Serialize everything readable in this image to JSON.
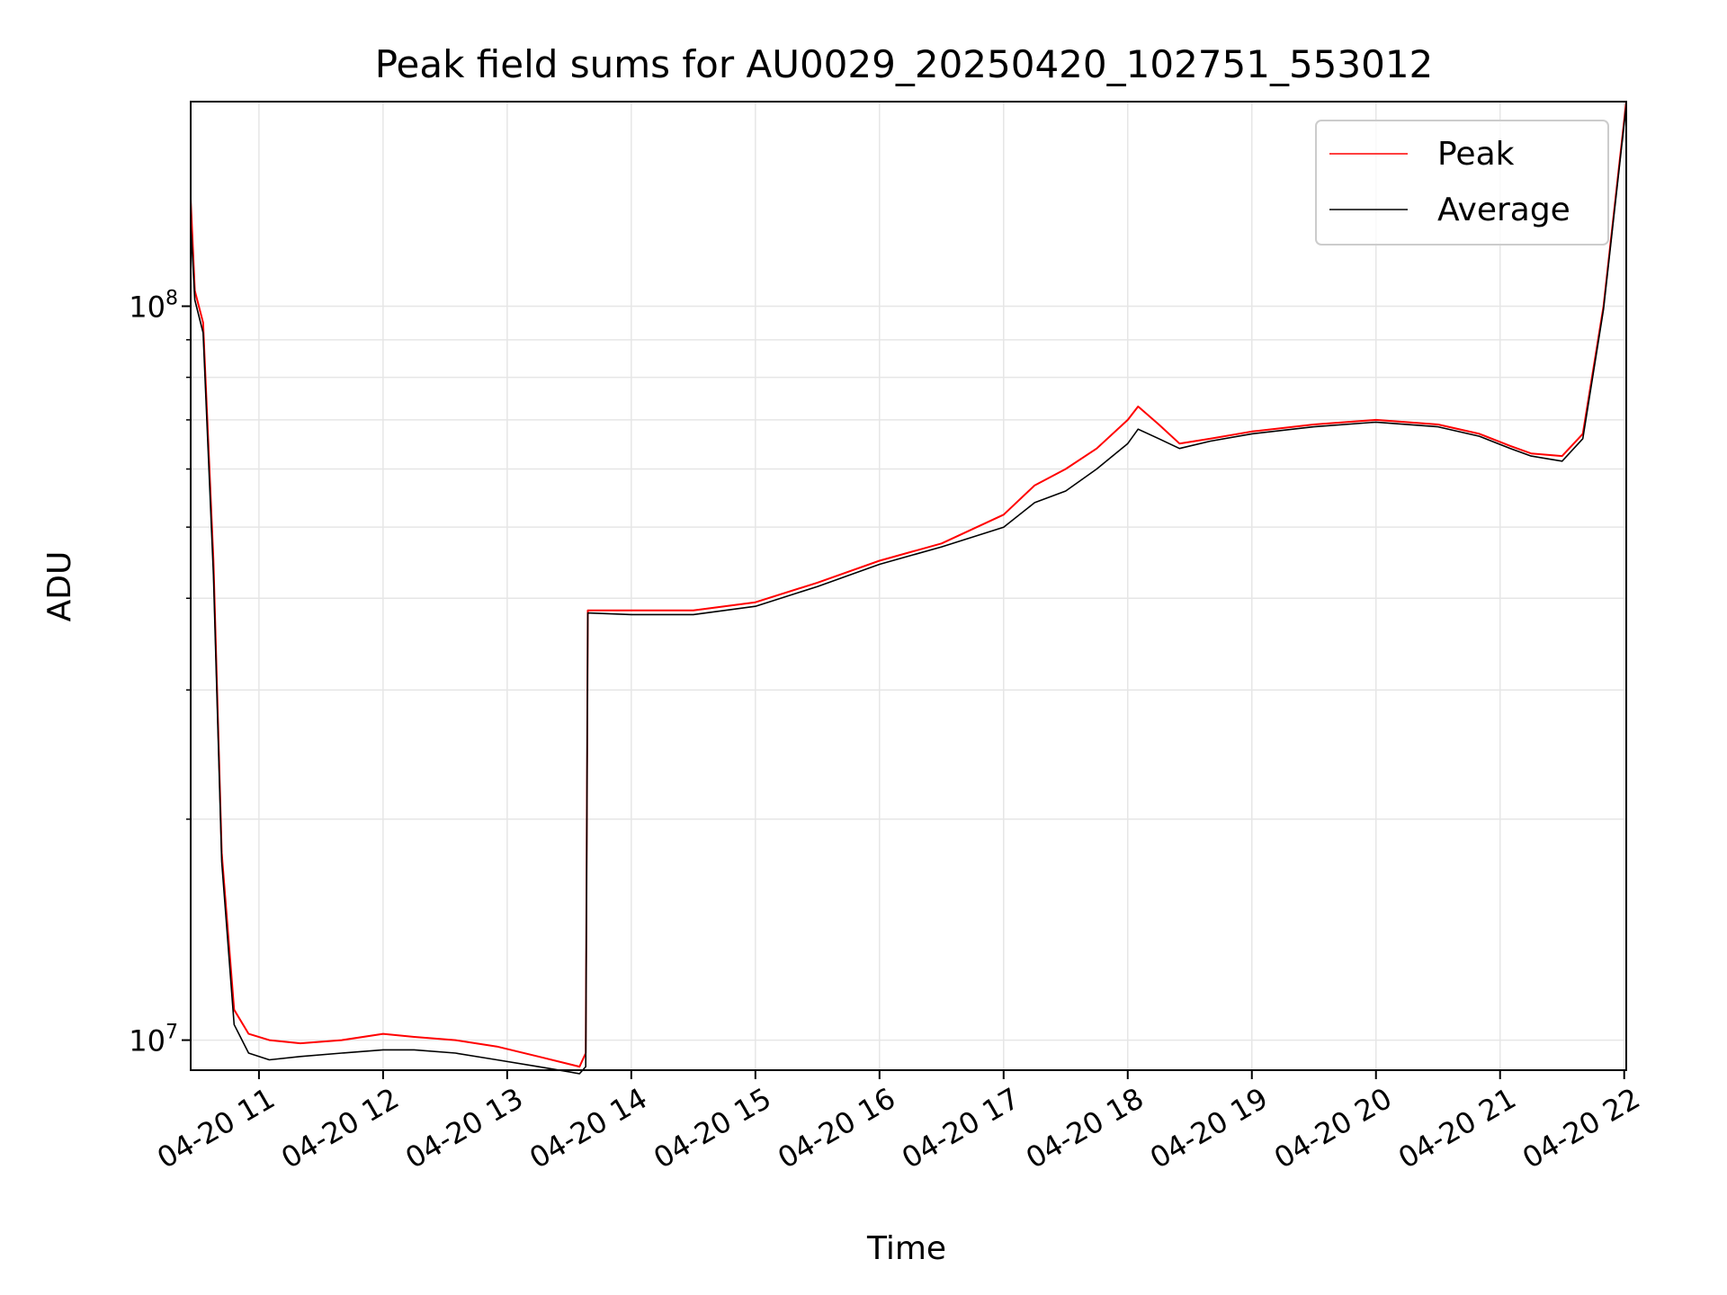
{
  "chart_data": {
    "type": "line",
    "title": "Peak field sums for AU0029_20250420_102751_553012",
    "xlabel": "Time",
    "ylabel": "ADU",
    "yscale": "log",
    "xlim": [
      "2025-04-20T10:27",
      "2025-04-20T22:01"
    ],
    "ylim": [
      9100000.0,
      190000000.0
    ],
    "x_ticks": [
      {
        "label": "04-20 11",
        "t": "2025-04-20T11:00"
      },
      {
        "label": "04-20 12",
        "t": "2025-04-20T12:00"
      },
      {
        "label": "04-20 13",
        "t": "2025-04-20T13:00"
      },
      {
        "label": "04-20 14",
        "t": "2025-04-20T14:00"
      },
      {
        "label": "04-20 15",
        "t": "2025-04-20T15:00"
      },
      {
        "label": "04-20 16",
        "t": "2025-04-20T16:00"
      },
      {
        "label": "04-20 17",
        "t": "2025-04-20T17:00"
      },
      {
        "label": "04-20 18",
        "t": "2025-04-20T18:00"
      },
      {
        "label": "04-20 19",
        "t": "2025-04-20T19:00"
      },
      {
        "label": "04-20 20",
        "t": "2025-04-20T20:00"
      },
      {
        "label": "04-20 21",
        "t": "2025-04-20T21:00"
      },
      {
        "label": "04-20 22",
        "t": "2025-04-20T22:00"
      }
    ],
    "y_ticks": [
      {
        "base": "10",
        "exp": "7",
        "value": 10000000.0
      },
      {
        "base": "10",
        "exp": "8",
        "value": 100000000.0
      }
    ],
    "grid": true,
    "legend_position": "top-right",
    "series": [
      {
        "name": "Peak",
        "color": "#ff0000",
        "x": [
          "2025-04-20T10:27",
          "2025-04-20T10:29",
          "2025-04-20T10:33",
          "2025-04-20T10:38",
          "2025-04-20T10:42",
          "2025-04-20T10:48",
          "2025-04-20T10:55",
          "2025-04-20T11:05",
          "2025-04-20T11:20",
          "2025-04-20T11:40",
          "2025-04-20T12:00",
          "2025-04-20T12:15",
          "2025-04-20T12:35",
          "2025-04-20T12:55",
          "2025-04-20T13:15",
          "2025-04-20T13:35",
          "2025-04-20T13:38",
          "2025-04-20T13:39",
          "2025-04-20T14:00",
          "2025-04-20T14:30",
          "2025-04-20T15:00",
          "2025-04-20T15:30",
          "2025-04-20T16:00",
          "2025-04-20T16:30",
          "2025-04-20T17:00",
          "2025-04-20T17:15",
          "2025-04-20T17:30",
          "2025-04-20T17:45",
          "2025-04-20T18:00",
          "2025-04-20T18:05",
          "2025-04-20T18:15",
          "2025-04-20T18:25",
          "2025-04-20T18:40",
          "2025-04-20T19:00",
          "2025-04-20T19:30",
          "2025-04-20T20:00",
          "2025-04-20T20:30",
          "2025-04-20T20:50",
          "2025-04-20T21:05",
          "2025-04-20T21:15",
          "2025-04-20T21:30",
          "2025-04-20T21:40",
          "2025-04-20T21:50",
          "2025-04-20T22:01"
        ],
        "values": [
          140000000.0,
          105000000.0,
          95000000.0,
          45000000.0,
          18000000.0,
          11000000.0,
          10200000.0,
          10000000.0,
          9900000.0,
          10000000.0,
          10200000.0,
          10100000.0,
          10000000.0,
          9800000.0,
          9500000.0,
          9200000.0,
          9600000.0,
          38500000.0,
          38500000.0,
          38500000.0,
          39500000.0,
          42000000.0,
          45000000.0,
          47500000.0,
          52000000.0,
          57000000.0,
          60000000.0,
          64000000.0,
          70000000.0,
          73000000.0,
          69000000.0,
          65000000.0,
          66000000.0,
          67500000.0,
          69000000.0,
          70000000.0,
          69000000.0,
          67000000.0,
          64500000.0,
          63000000.0,
          62500000.0,
          67000000.0,
          100000000.0,
          190000000.0
        ]
      },
      {
        "name": "Average",
        "color": "#000000",
        "x": [
          "2025-04-20T10:27",
          "2025-04-20T10:29",
          "2025-04-20T10:33",
          "2025-04-20T10:38",
          "2025-04-20T10:42",
          "2025-04-20T10:48",
          "2025-04-20T10:55",
          "2025-04-20T11:05",
          "2025-04-20T11:20",
          "2025-04-20T11:40",
          "2025-04-20T12:00",
          "2025-04-20T12:15",
          "2025-04-20T12:35",
          "2025-04-20T12:55",
          "2025-04-20T13:15",
          "2025-04-20T13:35",
          "2025-04-20T13:38",
          "2025-04-20T13:39",
          "2025-04-20T14:00",
          "2025-04-20T14:30",
          "2025-04-20T15:00",
          "2025-04-20T15:30",
          "2025-04-20T16:00",
          "2025-04-20T16:30",
          "2025-04-20T17:00",
          "2025-04-20T17:15",
          "2025-04-20T17:30",
          "2025-04-20T17:45",
          "2025-04-20T18:00",
          "2025-04-20T18:05",
          "2025-04-20T18:15",
          "2025-04-20T18:25",
          "2025-04-20T18:40",
          "2025-04-20T19:00",
          "2025-04-20T19:30",
          "2025-04-20T20:00",
          "2025-04-20T20:30",
          "2025-04-20T20:50",
          "2025-04-20T21:05",
          "2025-04-20T21:15",
          "2025-04-20T21:30",
          "2025-04-20T21:40",
          "2025-04-20T21:50",
          "2025-04-20T22:01"
        ],
        "values": [
          130000000.0,
          102000000.0,
          92000000.0,
          43000000.0,
          17500000.0,
          10500000.0,
          9600000.0,
          9400000.0,
          9500000.0,
          9600000.0,
          9700000.0,
          9700000.0,
          9600000.0,
          9400000.0,
          9200000.0,
          9000000.0,
          9200000.0,
          38200000.0,
          38000000.0,
          38000000.0,
          39000000.0,
          41500000.0,
          44500000.0,
          47000000.0,
          50000000.0,
          54000000.0,
          56000000.0,
          60000000.0,
          65000000.0,
          68000000.0,
          66000000.0,
          64000000.0,
          65500000.0,
          67000000.0,
          68500000.0,
          69500000.0,
          68500000.0,
          66500000.0,
          64000000.0,
          62500000.0,
          61500000.0,
          66000000.0,
          99000000.0,
          188000000.0
        ]
      }
    ]
  }
}
